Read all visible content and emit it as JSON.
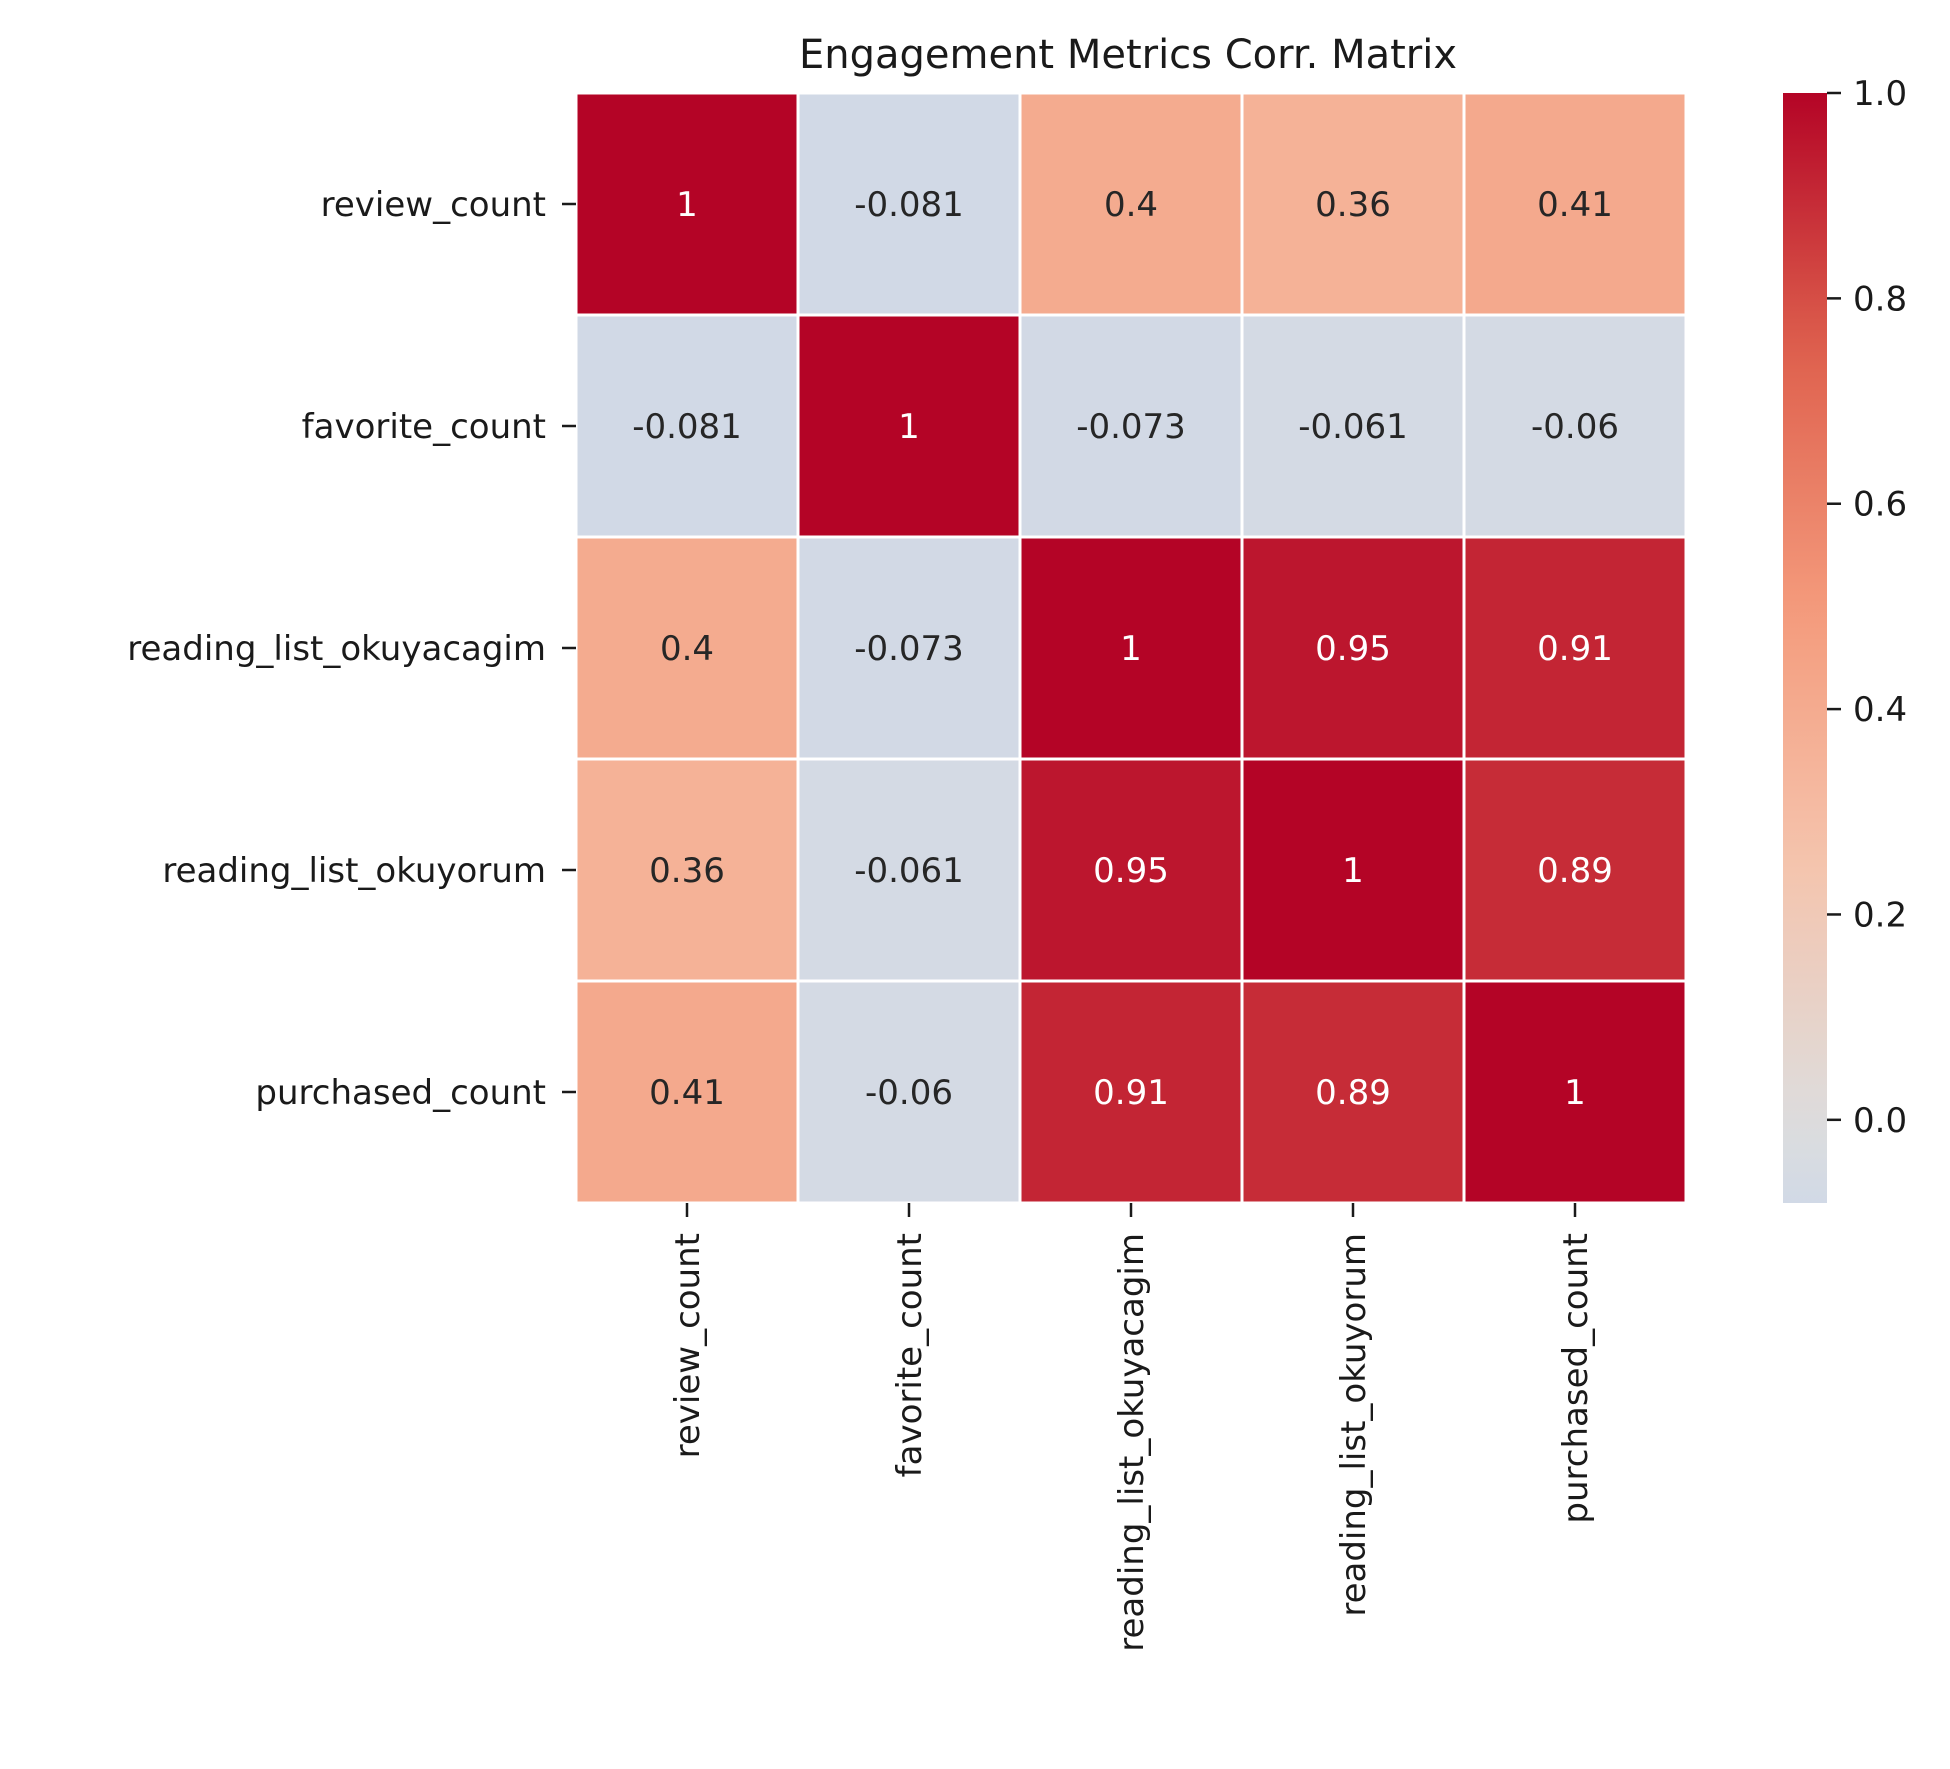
{
  "chart_data": {
    "type": "heatmap",
    "title": "Engagement Metrics Corr. Matrix",
    "xlabel": "",
    "ylabel": "",
    "row_labels": [
      "review_count",
      "favorite_count",
      "reading_list_okuyacagim",
      "reading_list_okuyorum",
      "purchased_count"
    ],
    "col_labels": [
      "review_count",
      "favorite_count",
      "reading_list_okuyacagim",
      "reading_list_okuyorum",
      "purchased_count"
    ],
    "values": [
      [
        1,
        -0.081,
        0.4,
        0.36,
        0.41
      ],
      [
        -0.081,
        1,
        -0.073,
        -0.061,
        -0.06
      ],
      [
        0.4,
        -0.073,
        1,
        0.95,
        0.91
      ],
      [
        0.36,
        -0.061,
        0.95,
        1,
        0.89
      ],
      [
        0.41,
        -0.06,
        0.91,
        0.89,
        1
      ]
    ],
    "cell_text": [
      [
        "1",
        "-0.081",
        "0.4",
        "0.36",
        "0.41"
      ],
      [
        "-0.081",
        "1",
        "-0.073",
        "-0.061",
        "-0.06"
      ],
      [
        "0.4",
        "-0.073",
        "1",
        "0.95",
        "0.91"
      ],
      [
        "0.36",
        "-0.061",
        "0.95",
        "1",
        "0.89"
      ],
      [
        "0.41",
        "-0.06",
        "0.91",
        "0.89",
        "1"
      ]
    ],
    "colormap": "coolwarm",
    "colormap_center": 0,
    "vmin": -0.081,
    "vmax": 1,
    "colorbar_ticks": [
      0.0,
      0.2,
      0.4,
      0.6,
      0.8,
      1.0
    ],
    "colorbar_tick_labels": [
      "0.0",
      "0.2",
      "0.4",
      "0.6",
      "0.8",
      "1.0"
    ],
    "colorbar_position": "right",
    "grid": false,
    "cell_border_color": "#ffffff",
    "dark_text_color": "#262626",
    "light_text_color": "#ffffff"
  }
}
